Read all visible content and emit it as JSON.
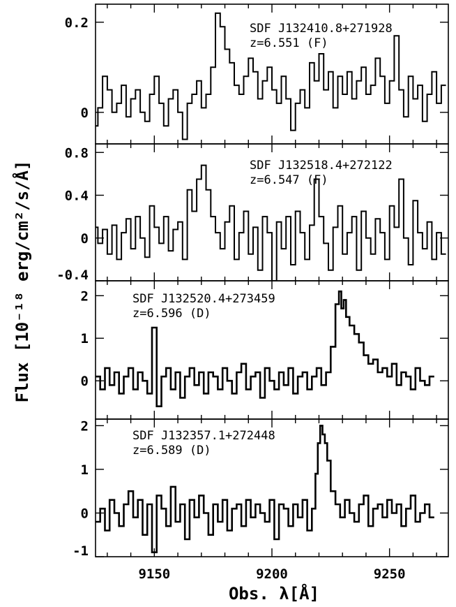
{
  "chart_data": [
    {
      "type": "line",
      "label_name": "SDF J132410.8+271928",
      "label_z": "z=6.551 (F)",
      "xlim": [
        9125,
        9275
      ],
      "ylim": [
        -0.07,
        0.24
      ],
      "yticks": [
        0,
        0.2
      ],
      "ytick_labels": [
        "0",
        "0.2"
      ],
      "x": [
        9125,
        9127,
        9129,
        9131,
        9133,
        9135,
        9137,
        9139,
        9141,
        9143,
        9145,
        9147,
        9149,
        9151,
        9153,
        9155,
        9157,
        9159,
        9161,
        9163,
        9165,
        9167,
        9169,
        9171,
        9173,
        9175,
        9177,
        9179,
        9181,
        9183,
        9185,
        9187,
        9189,
        9191,
        9193,
        9195,
        9197,
        9199,
        9201,
        9203,
        9205,
        9207,
        9209,
        9211,
        9213,
        9215,
        9217,
        9219,
        9221,
        9223,
        9225,
        9227,
        9229,
        9231,
        9233,
        9235,
        9237,
        9239,
        9241,
        9243,
        9245,
        9247,
        9249,
        9251,
        9253,
        9255,
        9257,
        9259,
        9261,
        9263,
        9265,
        9267,
        9269,
        9271,
        9273
      ],
      "y": [
        -0.03,
        0.01,
        0.08,
        0.05,
        0.0,
        0.02,
        0.06,
        -0.01,
        0.03,
        0.05,
        0.0,
        -0.02,
        0.04,
        0.08,
        0.02,
        -0.03,
        0.03,
        0.05,
        0.0,
        -0.06,
        0.02,
        0.04,
        0.07,
        0.01,
        0.04,
        0.1,
        0.22,
        0.19,
        0.14,
        0.11,
        0.06,
        0.04,
        0.08,
        0.12,
        0.09,
        0.03,
        0.07,
        0.1,
        0.05,
        0.02,
        0.08,
        0.03,
        -0.04,
        0.02,
        0.05,
        0.01,
        0.11,
        0.07,
        0.13,
        0.05,
        0.09,
        0.01,
        0.08,
        0.04,
        0.09,
        0.03,
        0.07,
        0.1,
        0.04,
        0.06,
        0.12,
        0.08,
        0.02,
        0.07,
        0.17,
        0.05,
        -0.01,
        0.08,
        0.03,
        0.06,
        -0.02,
        0.04,
        0.09,
        0.02,
        0.06
      ]
    },
    {
      "type": "line",
      "label_name": "SDF J132518.4+272122",
      "label_z": "z=6.547 (F)",
      "xlim": [
        9125,
        9275
      ],
      "ylim": [
        -0.4,
        0.88
      ],
      "yticks": [
        -0.4,
        0,
        0.4,
        0.8
      ],
      "ytick_labels": [
        "-0.4",
        "0",
        "0.4",
        "0.8"
      ],
      "x": [
        9125,
        9127,
        9129,
        9131,
        9133,
        9135,
        9137,
        9139,
        9141,
        9143,
        9145,
        9147,
        9149,
        9151,
        9153,
        9155,
        9157,
        9159,
        9161,
        9163,
        9165,
        9167,
        9169,
        9171,
        9173,
        9175,
        9177,
        9179,
        9181,
        9183,
        9185,
        9187,
        9189,
        9191,
        9193,
        9195,
        9197,
        9199,
        9201,
        9203,
        9205,
        9207,
        9209,
        9211,
        9213,
        9215,
        9217,
        9219,
        9221,
        9223,
        9225,
        9227,
        9229,
        9231,
        9233,
        9235,
        9237,
        9239,
        9241,
        9243,
        9245,
        9247,
        9249,
        9251,
        9253,
        9255,
        9257,
        9259,
        9261,
        9263,
        9265,
        9267,
        9269,
        9271,
        9273
      ],
      "y": [
        0.1,
        -0.05,
        0.08,
        -0.15,
        0.12,
        -0.2,
        0.05,
        0.18,
        -0.1,
        0.2,
        0.0,
        -0.18,
        0.3,
        0.1,
        -0.05,
        0.2,
        -0.12,
        0.08,
        0.15,
        -0.2,
        0.45,
        0.25,
        0.55,
        0.68,
        0.45,
        0.2,
        0.05,
        -0.1,
        0.15,
        0.3,
        -0.2,
        0.05,
        0.25,
        -0.15,
        0.1,
        -0.3,
        0.2,
        0.05,
        -0.4,
        0.15,
        -0.1,
        0.2,
        -0.25,
        0.25,
        0.05,
        -0.2,
        0.12,
        0.55,
        0.2,
        -0.05,
        -0.3,
        0.1,
        0.3,
        -0.15,
        0.05,
        0.2,
        -0.3,
        0.25,
        0.0,
        -0.15,
        0.18,
        0.05,
        -0.2,
        0.3,
        0.1,
        0.55,
        0.0,
        -0.25,
        0.35,
        0.05,
        -0.1,
        0.15,
        -0.2,
        0.05,
        -0.15
      ]
    },
    {
      "type": "line",
      "label_name": "SDF J132520.4+273459",
      "label_z": "z=6.596 (D)",
      "xlim": [
        9125,
        9275
      ],
      "ylim": [
        -0.9,
        2.35
      ],
      "yticks": [
        0,
        1,
        2
      ],
      "ytick_labels": [
        "0",
        "1",
        "2"
      ],
      "x": [
        9126,
        9128,
        9130,
        9132,
        9134,
        9136,
        9138,
        9140,
        9142,
        9144,
        9146,
        9148,
        9150,
        9152,
        9154,
        9156,
        9158,
        9160,
        9162,
        9164,
        9166,
        9168,
        9170,
        9172,
        9174,
        9176,
        9178,
        9180,
        9182,
        9184,
        9186,
        9188,
        9190,
        9192,
        9194,
        9196,
        9198,
        9200,
        9202,
        9204,
        9206,
        9208,
        9210,
        9212,
        9214,
        9216,
        9218,
        9220,
        9222,
        9224,
        9226,
        9228,
        9229,
        9230,
        9231,
        9232,
        9234,
        9236,
        9238,
        9240,
        9242,
        9244,
        9246,
        9248,
        9250,
        9252,
        9254,
        9256,
        9258,
        9260,
        9262,
        9264,
        9266,
        9268
      ],
      "y": [
        0.1,
        -0.2,
        0.3,
        -0.1,
        0.2,
        -0.3,
        0.1,
        0.3,
        -0.2,
        0.2,
        0.0,
        -0.3,
        1.25,
        -0.6,
        0.1,
        0.3,
        -0.2,
        0.2,
        -0.4,
        0.1,
        0.3,
        -0.1,
        0.2,
        -0.3,
        0.2,
        0.1,
        -0.2,
        0.3,
        0.0,
        -0.3,
        0.2,
        0.4,
        -0.2,
        0.1,
        0.2,
        -0.4,
        0.3,
        0.0,
        -0.2,
        0.2,
        -0.1,
        0.3,
        -0.3,
        0.1,
        0.2,
        -0.2,
        0.1,
        0.3,
        -0.1,
        0.2,
        0.8,
        1.8,
        2.1,
        1.7,
        1.9,
        1.5,
        1.3,
        1.1,
        0.9,
        0.6,
        0.4,
        0.5,
        0.2,
        0.3,
        0.1,
        0.4,
        -0.1,
        0.2,
        0.1,
        -0.2,
        0.3,
        0.0,
        -0.1,
        0.1
      ]
    },
    {
      "type": "line",
      "label_name": "SDF J132357.1+272448",
      "label_z": "z=6.589 (D)",
      "xlim": [
        9125,
        9275
      ],
      "ylim": [
        -1.0,
        2.15
      ],
      "yticks": [
        -1,
        0,
        1,
        2
      ],
      "ytick_labels": [
        "-1",
        "0",
        "1",
        "2"
      ],
      "x": [
        9126,
        9128,
        9130,
        9132,
        9134,
        9136,
        9138,
        9140,
        9142,
        9144,
        9146,
        9148,
        9150,
        9152,
        9154,
        9156,
        9158,
        9160,
        9162,
        9164,
        9166,
        9168,
        9170,
        9172,
        9174,
        9176,
        9178,
        9180,
        9182,
        9184,
        9186,
        9188,
        9190,
        9192,
        9194,
        9196,
        9198,
        9200,
        9202,
        9204,
        9206,
        9208,
        9210,
        9212,
        9214,
        9216,
        9218,
        9219,
        9220,
        9221,
        9222,
        9223,
        9224,
        9226,
        9228,
        9230,
        9232,
        9234,
        9236,
        9238,
        9240,
        9242,
        9244,
        9246,
        9248,
        9250,
        9252,
        9254,
        9256,
        9258,
        9260,
        9262,
        9264,
        9266,
        9268
      ],
      "y": [
        -0.2,
        0.1,
        -0.4,
        0.3,
        0.0,
        -0.3,
        0.2,
        0.5,
        -0.1,
        0.3,
        -0.5,
        0.2,
        -0.9,
        0.4,
        0.1,
        -0.3,
        0.6,
        -0.2,
        0.2,
        -0.6,
        0.3,
        -0.1,
        0.4,
        0.0,
        -0.5,
        0.2,
        -0.2,
        0.3,
        -0.4,
        0.1,
        0.2,
        -0.3,
        0.3,
        -0.1,
        0.2,
        0.0,
        -0.2,
        0.3,
        -0.6,
        0.2,
        0.1,
        -0.3,
        0.2,
        -0.1,
        0.3,
        -0.4,
        0.1,
        0.9,
        1.6,
        2.0,
        1.8,
        1.6,
        1.2,
        0.5,
        0.2,
        -0.1,
        0.3,
        0.0,
        -0.2,
        0.2,
        0.4,
        -0.3,
        0.1,
        0.2,
        -0.1,
        0.3,
        0.0,
        0.2,
        -0.3,
        0.1,
        0.4,
        -0.2,
        0.0,
        0.2,
        -0.1
      ]
    }
  ],
  "shared_axes": {
    "xticks": [
      9150,
      9200,
      9250
    ],
    "xtick_labels": [
      "9150",
      "9200",
      "9250"
    ],
    "xlabel": "Obs. λ[Å]",
    "ylabel": "Flux [10⁻¹⁸ erg/cm²/s/Å]"
  }
}
